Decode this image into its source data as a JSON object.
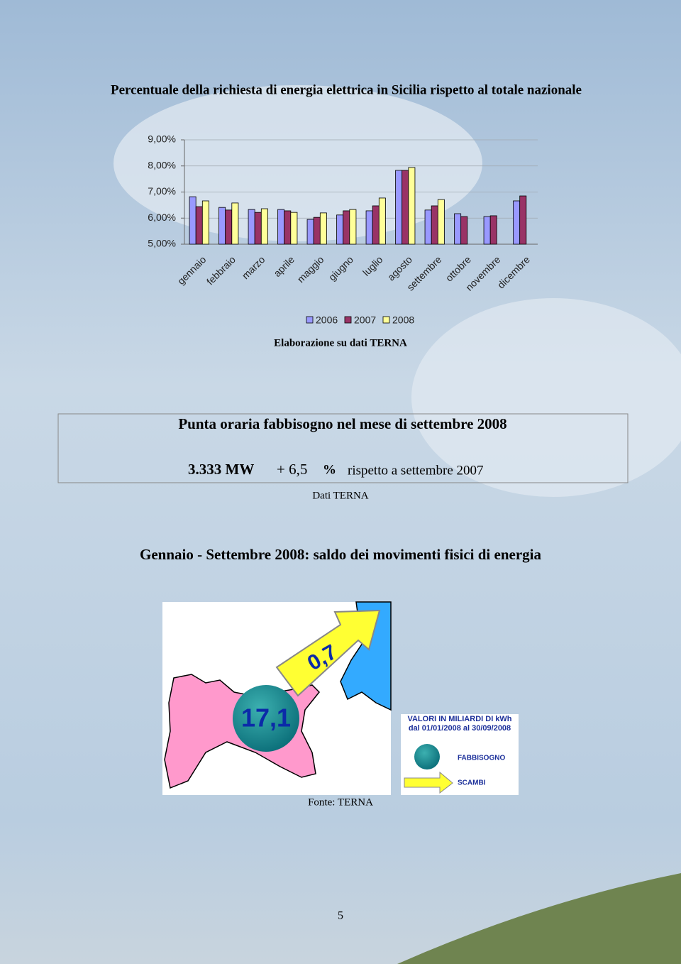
{
  "chart_data": {
    "type": "bar",
    "title": "Percentuale della richiesta di energia elettrica in Sicilia rispetto al totale nazionale",
    "source": "Elaborazione su dati TERNA",
    "categories": [
      "gennaio",
      "febbraio",
      "marzo",
      "aprile",
      "maggio",
      "giugno",
      "luglio",
      "agosto",
      "settembre",
      "ottobre",
      "novembre",
      "dicembre"
    ],
    "series": [
      {
        "name": "2006",
        "color": "#9999ff",
        "values": [
          6.82,
          6.41,
          6.33,
          6.33,
          5.95,
          6.12,
          6.28,
          7.83,
          6.31,
          6.17,
          6.06,
          6.66
        ]
      },
      {
        "name": "2007",
        "color": "#993366",
        "values": [
          6.44,
          6.31,
          6.22,
          6.28,
          6.03,
          6.28,
          6.47,
          7.83,
          6.47,
          6.06,
          6.09,
          6.85
        ]
      },
      {
        "name": "2008",
        "color": "#ffff99",
        "values": [
          6.66,
          6.58,
          6.36,
          6.22,
          6.2,
          6.33,
          6.77,
          7.94,
          6.71,
          null,
          null,
          null
        ]
      }
    ],
    "ylim": [
      5,
      9
    ],
    "yticks": [
      {
        "value": 5,
        "label": "5,00%"
      },
      {
        "value": 6,
        "label": "6,00%"
      },
      {
        "value": 7,
        "label": "7,00%"
      },
      {
        "value": 8,
        "label": "8,00%"
      },
      {
        "value": 9,
        "label": "9,00%"
      }
    ],
    "grid": true,
    "legend": "bottom"
  },
  "peak": {
    "title": "Punta oraria fabbisogno nel mese di settembre 2008",
    "value": "3.333 MW",
    "change": "+ 6,5",
    "unit": "%",
    "comparison": "rispetto a settembre 2007",
    "source": "Dati TERNA"
  },
  "balance": {
    "title": "Gennaio - Settembre 2008: saldo dei movimenti fisici di energia",
    "exchange": "0,7",
    "demand": "17,1",
    "legend": {
      "title": "VALORI IN MILIARDI DI kWh",
      "period": "dal 01/01/2008 al 30/09/2008",
      "demand": "FABBISOGNO",
      "exchange": "SCAMBI"
    },
    "source": "Fonte: TERNA"
  },
  "page_number": "5"
}
